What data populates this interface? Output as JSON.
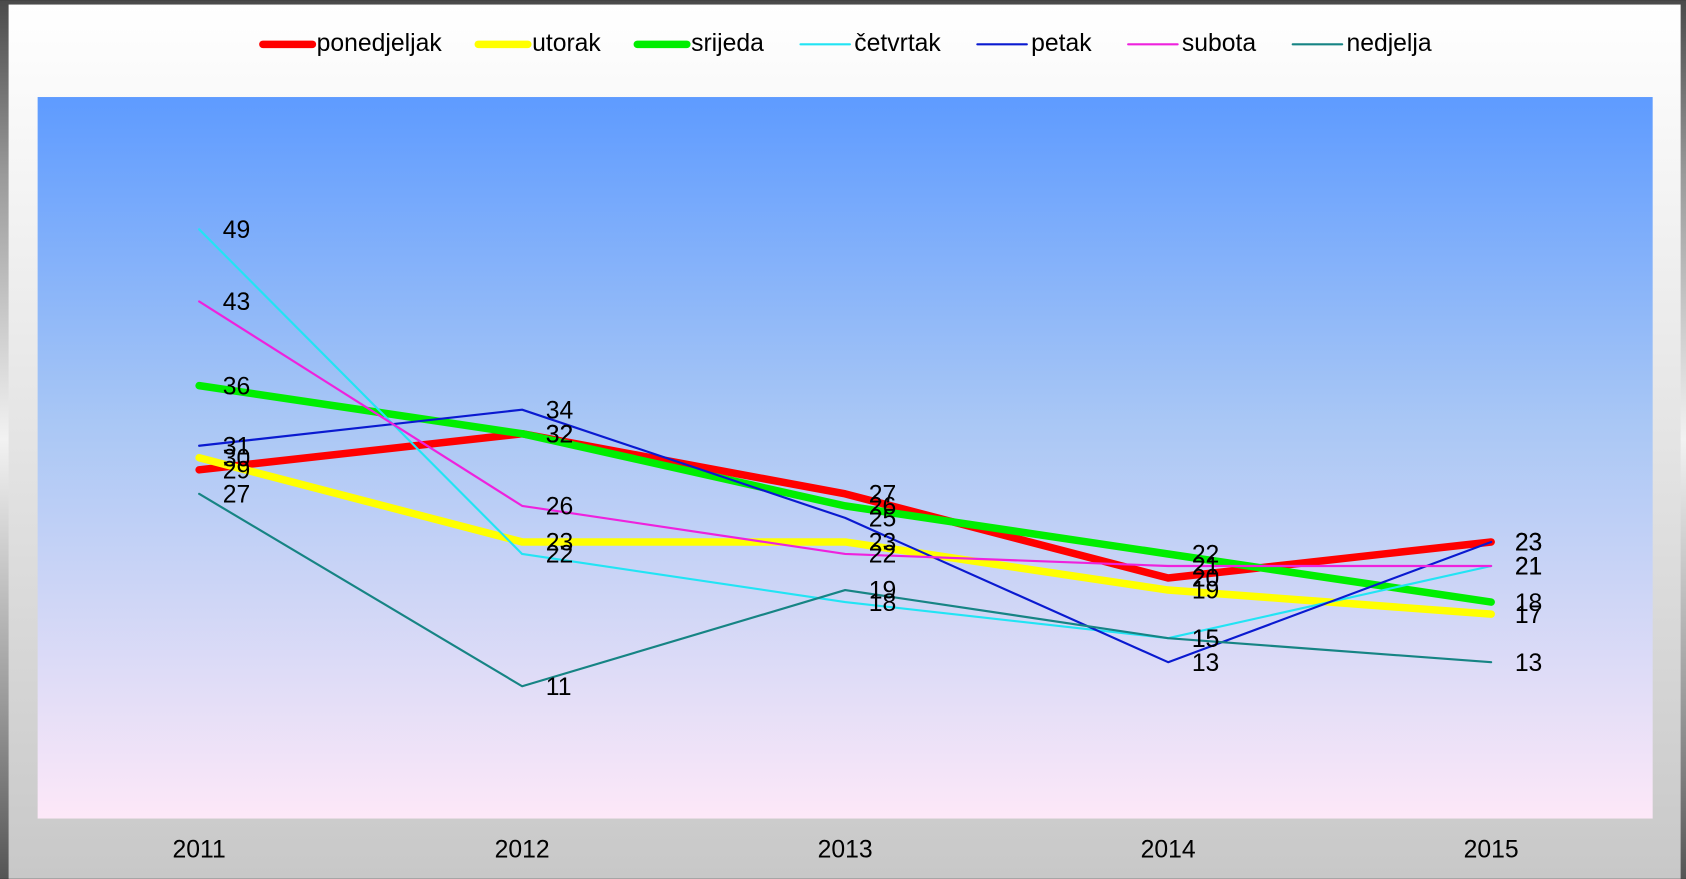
{
  "chart_data": {
    "type": "line",
    "categories": [
      "2011",
      "2012",
      "2013",
      "2014",
      "2015"
    ],
    "series": [
      {
        "name": "ponedjeljak",
        "color": "#ff0000",
        "width": 7,
        "values": [
          29,
          32,
          27,
          20,
          23
        ]
      },
      {
        "name": "utorak",
        "color": "#ffff00",
        "width": 7,
        "values": [
          30,
          23,
          23,
          19,
          17
        ]
      },
      {
        "name": "srijeda",
        "color": "#00ee00",
        "width": 7,
        "values": [
          36,
          32,
          26,
          22,
          18
        ]
      },
      {
        "name": "četvrtak",
        "color": "#22e4f4",
        "width": 2,
        "values": [
          49,
          22,
          18,
          15,
          21
        ]
      },
      {
        "name": "petak",
        "color": "#0a1ad0",
        "width": 2,
        "values": [
          31,
          34,
          25,
          13,
          23
        ]
      },
      {
        "name": "subota",
        "color": "#ee22dd",
        "width": 2,
        "values": [
          43,
          26,
          22,
          21,
          21
        ]
      },
      {
        "name": "nedjelja",
        "color": "#168484",
        "width": 2,
        "values": [
          27,
          11,
          19,
          15,
          13
        ]
      }
    ],
    "ylim": [
      0,
      60
    ],
    "legend": "top",
    "data_labels": true
  }
}
